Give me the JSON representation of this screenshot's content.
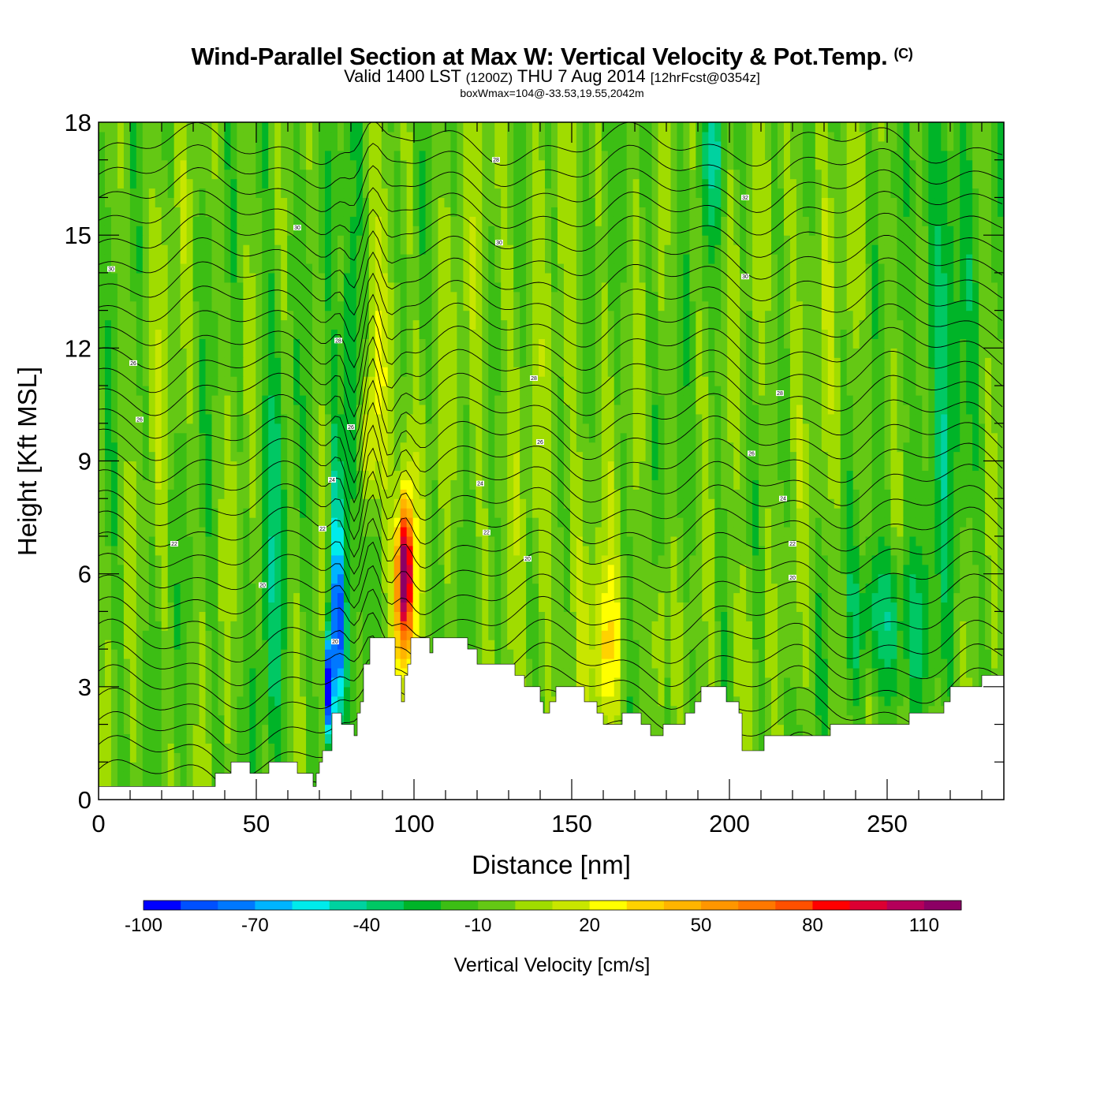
{
  "chart_data": {
    "type": "heatmap",
    "title": "Wind-Parallel Section at Max W: Vertical Velocity & Pot.Temp.",
    "title_mark": "(C)",
    "subtitle_valid": "Valid 1400 LST",
    "subtitle_utc": "(1200Z)",
    "subtitle_date": "THU 7 Aug 2014",
    "subtitle_fcst": "[12hrFcst@0354z]",
    "info": "boxWmax=104@-33.53,19.55,2042m",
    "xlabel": "Distance [nm]",
    "ylabel": "Height [Kft MSL]",
    "xlim": [
      0,
      287
    ],
    "ylim": [
      0,
      18
    ],
    "x_ticks": [
      0,
      50,
      100,
      150,
      200,
      250
    ],
    "x_tick_labels": [
      "0",
      "50",
      "100",
      "150",
      "200",
      "250"
    ],
    "y_ticks": [
      0,
      3,
      6,
      9,
      12,
      15,
      18
    ],
    "y_tick_labels": [
      "0",
      "3",
      "6",
      "9",
      "12",
      "15",
      "18"
    ],
    "colorbar": {
      "title": "Vertical Velocity [cm/s]",
      "levels": [
        -100,
        -90,
        -80,
        -70,
        -60,
        -50,
        -40,
        -30,
        -20,
        -10,
        0,
        10,
        20,
        30,
        40,
        50,
        60,
        70,
        80,
        90,
        100,
        110,
        120
      ],
      "labels": [
        "-100",
        "-70",
        "-40",
        "-10",
        "20",
        "50",
        "80",
        "110"
      ],
      "label_values": [
        -100,
        -70,
        -40,
        -10,
        20,
        50,
        80,
        110
      ],
      "colors": [
        "#0000ff",
        "#0050ff",
        "#0078ff",
        "#00b4ff",
        "#00ebeb",
        "#00d2a0",
        "#00c864",
        "#00b428",
        "#3cbe14",
        "#64c814",
        "#a0dc00",
        "#c8e600",
        "#ffff00",
        "#ffd200",
        "#ffb400",
        "#ff9600",
        "#ff7800",
        "#ff5000",
        "#ff0000",
        "#dc0032",
        "#b4005a",
        "#8c0064"
      ]
    },
    "terrain_kft": [
      [
        0,
        0.35
      ],
      [
        36,
        0.35
      ],
      [
        37,
        0.7
      ],
      [
        41,
        0.7
      ],
      [
        42,
        1.0
      ],
      [
        47,
        1.0
      ],
      [
        48,
        0.7
      ],
      [
        53,
        0.7
      ],
      [
        54,
        1.0
      ],
      [
        62,
        1.0
      ],
      [
        63,
        0.7
      ],
      [
        67,
        0.7
      ],
      [
        68,
        0.35
      ],
      [
        69,
        0.7
      ],
      [
        70,
        1.0
      ],
      [
        71,
        1.3
      ],
      [
        73,
        1.3
      ],
      [
        74,
        2.3
      ],
      [
        76,
        2.3
      ],
      [
        77,
        2.0
      ],
      [
        80,
        2.0
      ],
      [
        81,
        1.7
      ],
      [
        82,
        2.3
      ],
      [
        83,
        2.6
      ],
      [
        84,
        3.6
      ],
      [
        86,
        4.3
      ],
      [
        93,
        4.3
      ],
      [
        94,
        3.3
      ],
      [
        96,
        2.6
      ],
      [
        97,
        3.3
      ],
      [
        98,
        3.6
      ],
      [
        99,
        4.3
      ],
      [
        104,
        4.3
      ],
      [
        105,
        3.9
      ],
      [
        106,
        4.3
      ],
      [
        114,
        4.3
      ],
      [
        117,
        4.0
      ],
      [
        120,
        3.6
      ],
      [
        126,
        3.6
      ],
      [
        132,
        3.3
      ],
      [
        135,
        3.0
      ],
      [
        140,
        2.6
      ],
      [
        141,
        2.3
      ],
      [
        143,
        2.6
      ],
      [
        145,
        3.0
      ],
      [
        150,
        3.0
      ],
      [
        154,
        2.6
      ],
      [
        158,
        2.3
      ],
      [
        160,
        2.0
      ],
      [
        164,
        2.0
      ],
      [
        166,
        2.3
      ],
      [
        171,
        2.3
      ],
      [
        172,
        2.0
      ],
      [
        175,
        1.7
      ],
      [
        178,
        1.7
      ],
      [
        179,
        2.0
      ],
      [
        184,
        2.0
      ],
      [
        186,
        2.3
      ],
      [
        189,
        2.6
      ],
      [
        191,
        3.0
      ],
      [
        197,
        3.0
      ],
      [
        199,
        2.6
      ],
      [
        203,
        2.3
      ],
      [
        204,
        1.3
      ],
      [
        209,
        1.3
      ],
      [
        211,
        1.7
      ],
      [
        230,
        1.7
      ],
      [
        232,
        2.0
      ],
      [
        255,
        2.0
      ],
      [
        257,
        2.3
      ],
      [
        268,
        2.6
      ],
      [
        270,
        3.0
      ],
      [
        278,
        3.0
      ],
      [
        280,
        3.3
      ],
      [
        287,
        3.6
      ]
    ],
    "w_features": [
      {
        "x": 97,
        "y": 6.0,
        "sx": 1.6,
        "sy": 1.2,
        "w": 100
      },
      {
        "x": 97,
        "y": 5.5,
        "sx": 2.8,
        "sy": 2.3,
        "w": 45
      },
      {
        "x": 86,
        "y": 9.5,
        "sx": 2.0,
        "sy": 1.5,
        "w": 35
      },
      {
        "x": 91,
        "y": 12.0,
        "sx": 2.5,
        "sy": 2.5,
        "w": 22
      },
      {
        "x": 73,
        "y": 3.0,
        "sx": 1.0,
        "sy": 1.0,
        "w": -100
      },
      {
        "x": 76,
        "y": 4.5,
        "sx": 1.3,
        "sy": 1.5,
        "w": -60
      },
      {
        "x": 75,
        "y": 6.5,
        "sx": 1.5,
        "sy": 2.5,
        "w": -38
      },
      {
        "x": 80,
        "y": 11.0,
        "sx": 2.0,
        "sy": 4.0,
        "w": -32
      },
      {
        "x": 161,
        "y": 4.0,
        "sx": 3.5,
        "sy": 1.5,
        "w": 30
      },
      {
        "x": 178,
        "y": 4.5,
        "sx": 1.3,
        "sy": 1.6,
        "w": 28
      },
      {
        "x": 249,
        "y": 4.8,
        "sx": 9.0,
        "sy": 1.4,
        "w": -30
      },
      {
        "x": 268,
        "y": 13.0,
        "sx": 5.0,
        "sy": 5.0,
        "w": -25
      },
      {
        "x": 195,
        "y": 17.2,
        "sx": 2.5,
        "sy": 1.5,
        "w": -28
      },
      {
        "x": 150,
        "y": 6.0,
        "sx": 10.0,
        "sy": 5.0,
        "w": 10
      },
      {
        "x": 225,
        "y": 13.5,
        "sx": 15.0,
        "sy": 4.0,
        "w": 8
      },
      {
        "x": 20,
        "y": 13.0,
        "sx": 6.0,
        "sy": 4.0,
        "w": 8
      },
      {
        "x": 55,
        "y": 7.0,
        "sx": 3.0,
        "sy": 5.0,
        "w": -22
      },
      {
        "x": 45,
        "y": 11.0,
        "sx": 3.0,
        "sy": 4.0,
        "w": 5
      },
      {
        "x": 120,
        "y": 11.0,
        "sx": 15.0,
        "sy": 3.0,
        "w": 8
      },
      {
        "x": 130,
        "y": 16.5,
        "sx": 10.0,
        "sy": 2.0,
        "w": 6
      },
      {
        "x": 205,
        "y": 4.0,
        "sx": 3.0,
        "sy": 2.0,
        "w": 12
      },
      {
        "x": 235,
        "y": 4.5,
        "sx": 2.0,
        "sy": 1.5,
        "w": 14
      }
    ],
    "theta_contours": {
      "label": "potential temperature",
      "start_kft": 0.6,
      "interval_kft": 0.6,
      "count": 29,
      "labels": [
        {
          "x": 4,
          "y": 14.1,
          "text": "30"
        },
        {
          "x": 63,
          "y": 15.2,
          "text": "30"
        },
        {
          "x": 126,
          "y": 17.0,
          "text": "28"
        },
        {
          "x": 127,
          "y": 14.8,
          "text": "30"
        },
        {
          "x": 205,
          "y": 16.0,
          "text": "32"
        },
        {
          "x": 205,
          "y": 13.9,
          "text": "30"
        },
        {
          "x": 11,
          "y": 11.6,
          "text": "26"
        },
        {
          "x": 76,
          "y": 12.2,
          "text": "28"
        },
        {
          "x": 138,
          "y": 11.2,
          "text": "28"
        },
        {
          "x": 216,
          "y": 10.8,
          "text": "28"
        },
        {
          "x": 13,
          "y": 10.1,
          "text": "26"
        },
        {
          "x": 80,
          "y": 9.9,
          "text": "26"
        },
        {
          "x": 140,
          "y": 9.5,
          "text": "26"
        },
        {
          "x": 207,
          "y": 9.2,
          "text": "26"
        },
        {
          "x": 74,
          "y": 8.5,
          "text": "24"
        },
        {
          "x": 121,
          "y": 8.4,
          "text": "24"
        },
        {
          "x": 217,
          "y": 8.0,
          "text": "24"
        },
        {
          "x": 71,
          "y": 7.2,
          "text": "22"
        },
        {
          "x": 24,
          "y": 6.8,
          "text": "22"
        },
        {
          "x": 123,
          "y": 7.1,
          "text": "22"
        },
        {
          "x": 220,
          "y": 6.8,
          "text": "22"
        },
        {
          "x": 52,
          "y": 5.7,
          "text": "20"
        },
        {
          "x": 136,
          "y": 6.4,
          "text": "20"
        },
        {
          "x": 220,
          "y": 5.9,
          "text": "20"
        },
        {
          "x": 75,
          "y": 4.2,
          "text": "20"
        }
      ]
    }
  }
}
